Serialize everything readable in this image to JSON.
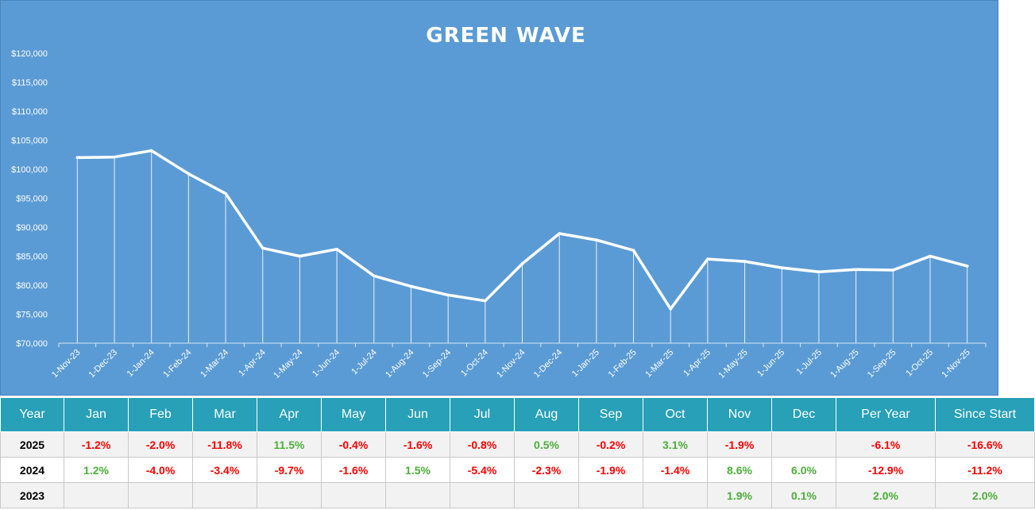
{
  "chart_data": {
    "type": "line",
    "title": "GREEN WAVE",
    "x": [
      "1-Nov-23",
      "1-Dec-23",
      "1-Jan-24",
      "1-Feb-24",
      "1-Mar-24",
      "1-Apr-24",
      "1-May-24",
      "1-Jun-24",
      "1-Jul-24",
      "1-Aug-24",
      "1-Sep-24",
      "1-Oct-24",
      "1-Nov-24",
      "1-Dec-24",
      "1-Jan-25",
      "1-Feb-25",
      "1-Mar-25",
      "1-Apr-25",
      "1-May-25",
      "1-Jun-25",
      "1-Jul-25",
      "1-Aug-25",
      "1-Sep-25",
      "1-Oct-25",
      "1-Nov-25"
    ],
    "series": [
      {
        "values": [
          102000,
          102100,
          103200,
          99200,
          95800,
          86400,
          85000,
          86200,
          81600,
          79800,
          78300,
          77300,
          83700,
          88900,
          87800,
          86000,
          75900,
          84500,
          84100,
          83000,
          82300,
          82700,
          82600,
          85000,
          83300
        ]
      }
    ],
    "yticks": [
      "$70,000",
      "$75,000",
      "$80,000",
      "$85,000",
      "$90,000",
      "$95,000",
      "$100,000",
      "$105,000",
      "$110,000",
      "$115,000",
      "$120,000"
    ],
    "ylim": [
      70000,
      120000
    ],
    "line_color": "#ffffff",
    "background": "#5b9bd5",
    "drop_lines": true,
    "grid": false,
    "legend": "none"
  },
  "table": {
    "headers": [
      "Year",
      "Jan",
      "Feb",
      "Mar",
      "Apr",
      "May",
      "Jun",
      "Jul",
      "Aug",
      "Sep",
      "Oct",
      "Nov",
      "Dec",
      "Per Year",
      "Since Start"
    ],
    "rows": [
      {
        "cells": [
          "2025",
          "-1.2%",
          "-2.0%",
          "-11.8%",
          "11.5%",
          "-0.4%",
          "-1.6%",
          "-0.8%",
          "0.5%",
          "-0.2%",
          "3.1%",
          "-1.9%",
          "",
          "-6.1%",
          "-16.6%"
        ]
      },
      {
        "cells": [
          "2024",
          "1.2%",
          "-4.0%",
          "-3.4%",
          "-9.7%",
          "-1.6%",
          "1.5%",
          "-5.4%",
          "-2.3%",
          "-1.9%",
          "-1.4%",
          "8.6%",
          "6.0%",
          "-12.9%",
          "-11.2%"
        ]
      },
      {
        "cells": [
          "2023",
          "",
          "",
          "",
          "",
          "",
          "",
          "",
          "",
          "",
          "",
          "1.9%",
          "0.1%",
          "2.0%",
          "2.0%"
        ]
      }
    ],
    "colors": {
      "header_bg": "#27a0b8",
      "negative": "#ff0000",
      "positive": "#4caf3a"
    }
  }
}
